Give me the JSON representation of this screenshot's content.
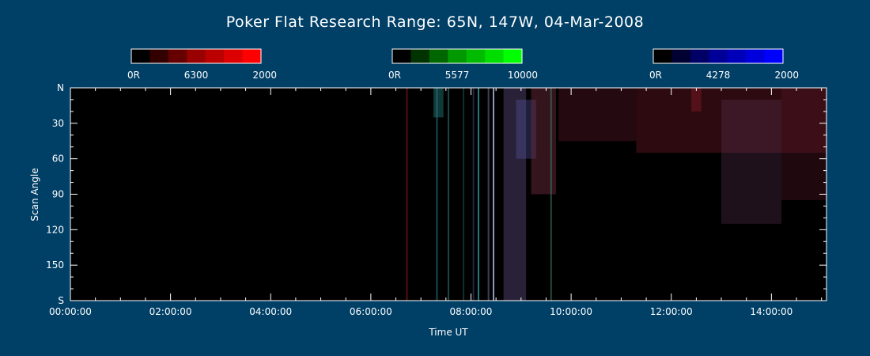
{
  "chart_data": {
    "type": "heatmap",
    "title": "Poker Flat Research Range: 65N, 147W, 04-Mar-2008",
    "xlabel": "Time UT",
    "ylabel": "Scan Angle",
    "x_ticks": [
      "00:00:00",
      "02:00:00",
      "04:00:00",
      "06:00:00",
      "08:00:00",
      "10:00:00",
      "12:00:00",
      "14:00:00"
    ],
    "x_tick_hours": [
      0,
      2,
      4,
      6,
      8,
      10,
      12,
      14
    ],
    "xlim_hours": [
      0,
      15.1
    ],
    "y_ticks": [
      "N",
      "30",
      "60",
      "90",
      "120",
      "150",
      "S"
    ],
    "y_tick_values": [
      0,
      30,
      60,
      90,
      120,
      150,
      180
    ],
    "ylim": [
      0,
      180
    ],
    "colorbars": [
      {
        "name": "6300",
        "min_label": "0R",
        "max_label": "2000",
        "colors": [
          "#000000",
          "#330000",
          "#660000",
          "#990000",
          "#bb0000",
          "#dd0000",
          "#ff0000"
        ]
      },
      {
        "name": "5577",
        "min_label": "0R",
        "max_label": "10000",
        "colors": [
          "#000000",
          "#003300",
          "#006600",
          "#009900",
          "#00bb00",
          "#00dd00",
          "#00ff00"
        ]
      },
      {
        "name": "4278",
        "min_label": "0R",
        "max_label": "2000",
        "colors": [
          "#000000",
          "#000033",
          "#000066",
          "#000099",
          "#0000bb",
          "#0000dd",
          "#0000ff"
        ]
      }
    ],
    "features": [
      {
        "type": "line",
        "hour": 6.72,
        "color": "#6a1418",
        "opacity": 0.8
      },
      {
        "type": "band",
        "start": 7.25,
        "end": 7.45,
        "color": "#2aa6a6",
        "opacity": 0.35,
        "y0": 0,
        "y1": 25
      },
      {
        "type": "line",
        "hour": 7.32,
        "color": "#2a7a8a",
        "opacity": 0.6
      },
      {
        "type": "line",
        "hour": 7.55,
        "color": "#3a8a8a",
        "opacity": 0.5
      },
      {
        "type": "line",
        "hour": 7.85,
        "color": "#2a5a5a",
        "opacity": 0.5
      },
      {
        "type": "line",
        "hour": 8.05,
        "color": "#4a4a8a",
        "opacity": 0.5
      },
      {
        "type": "line",
        "hour": 8.15,
        "color": "#3aaaaa",
        "opacity": 0.7
      },
      {
        "type": "line",
        "hour": 8.35,
        "color": "#6a6a8a",
        "opacity": 0.6
      },
      {
        "type": "line",
        "hour": 8.45,
        "color": "#9aaacc",
        "opacity": 0.9
      },
      {
        "type": "band",
        "start": 8.65,
        "end": 9.1,
        "color": "#5a4a7a",
        "opacity": 0.45,
        "y0": 0,
        "y1": 180
      },
      {
        "type": "band",
        "start": 8.9,
        "end": 9.3,
        "color": "#5a5aaa",
        "opacity": 0.35,
        "y0": 10,
        "y1": 60
      },
      {
        "type": "band",
        "start": 9.2,
        "end": 9.7,
        "color": "#6a2a3a",
        "opacity": 0.5,
        "y0": 0,
        "y1": 90
      },
      {
        "type": "line",
        "hour": 9.6,
        "color": "#3a7a6a",
        "opacity": 0.6
      },
      {
        "type": "band",
        "start": 9.75,
        "end": 11.3,
        "color": "#5a1a28",
        "opacity": 0.4,
        "y0": 0,
        "y1": 45
      },
      {
        "type": "band",
        "start": 11.3,
        "end": 15.1,
        "color": "#701a26",
        "opacity": 0.4,
        "y0": 0,
        "y1": 55
      },
      {
        "type": "band",
        "start": 12.4,
        "end": 12.6,
        "color": "#a02030",
        "opacity": 0.35,
        "y0": 0,
        "y1": 20
      },
      {
        "type": "band",
        "start": 13.0,
        "end": 14.2,
        "color": "#5a3050",
        "opacity": 0.35,
        "y0": 10,
        "y1": 115
      },
      {
        "type": "band",
        "start": 14.2,
        "end": 15.1,
        "color": "#5a1a2a",
        "opacity": 0.35,
        "y0": 0,
        "y1": 95
      }
    ]
  }
}
